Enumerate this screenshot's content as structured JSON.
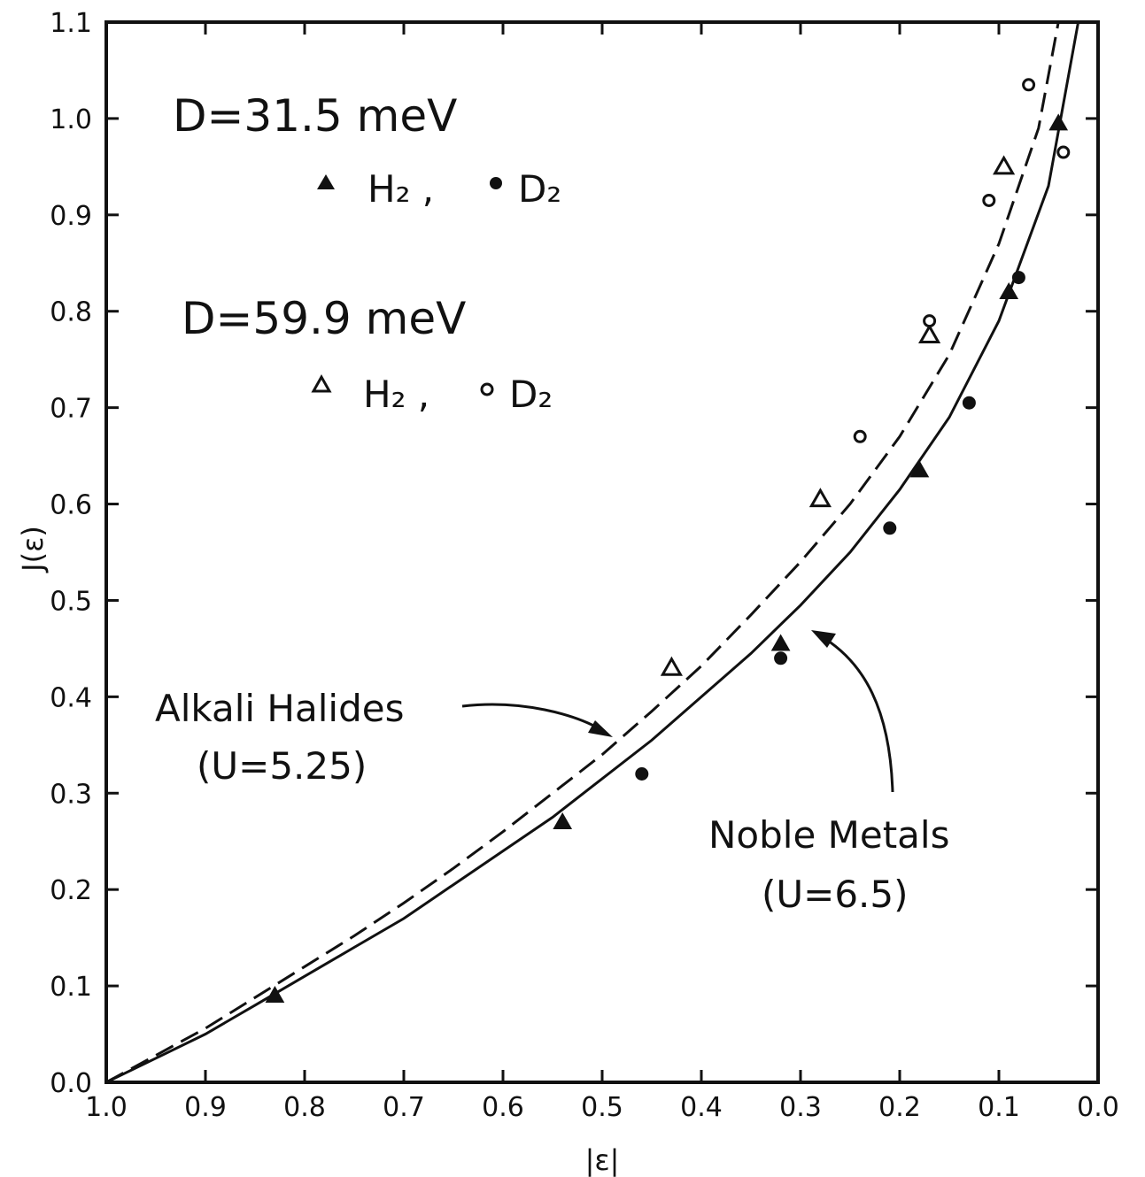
{
  "chart_data": {
    "type": "line",
    "xlabel": "|ε|",
    "ylabel": "J(ε)",
    "xlim": [
      1.0,
      0.0
    ],
    "ylim": [
      0.0,
      1.1
    ],
    "x_reversed": true,
    "grid": false,
    "x_ticks": [
      "1.0",
      "0.9",
      "0.8",
      "0.7",
      "0.6",
      "0.5",
      "0.4",
      "0.3",
      "0.2",
      "0.1",
      "0.0"
    ],
    "y_ticks": [
      "0.0",
      "0.1",
      "0.2",
      "0.3",
      "0.4",
      "0.5",
      "0.6",
      "0.7",
      "0.8",
      "0.9",
      "1.0",
      "1.1"
    ],
    "series": [
      {
        "style": "solid",
        "x": [
          1.0,
          0.95,
          0.9,
          0.85,
          0.8,
          0.75,
          0.7,
          0.65,
          0.6,
          0.55,
          0.5,
          0.45,
          0.4,
          0.35,
          0.3,
          0.25,
          0.2,
          0.15,
          0.1,
          0.05,
          0.02
        ],
        "values": [
          0.0,
          0.025,
          0.05,
          0.08,
          0.11,
          0.14,
          0.17,
          0.205,
          0.24,
          0.275,
          0.315,
          0.355,
          0.4,
          0.445,
          0.495,
          0.55,
          0.615,
          0.69,
          0.79,
          0.93,
          1.1
        ]
      },
      {
        "style": "dashed",
        "x": [
          1.0,
          0.95,
          0.9,
          0.85,
          0.8,
          0.75,
          0.7,
          0.65,
          0.6,
          0.55,
          0.5,
          0.45,
          0.4,
          0.35,
          0.3,
          0.25,
          0.2,
          0.15,
          0.1,
          0.06,
          0.04
        ],
        "values": [
          0.0,
          0.028,
          0.056,
          0.088,
          0.12,
          0.152,
          0.186,
          0.222,
          0.26,
          0.3,
          0.34,
          0.385,
          0.432,
          0.485,
          0.54,
          0.6,
          0.67,
          0.755,
          0.87,
          0.99,
          1.1
        ]
      }
    ],
    "points": [
      {
        "group": "H2, D=31.5 meV",
        "marker": "triangle-filled",
        "x": [
          0.83,
          0.54,
          0.32,
          0.18,
          0.09,
          0.04
        ],
        "y": [
          0.09,
          0.27,
          0.455,
          0.635,
          0.82,
          0.995
        ]
      },
      {
        "group": "D2, D=31.5 meV",
        "marker": "circle-filled",
        "x": [
          0.46,
          0.32,
          0.21,
          0.13,
          0.08
        ],
        "y": [
          0.32,
          0.44,
          0.575,
          0.705,
          0.835
        ]
      },
      {
        "group": "H2, D=59.9 meV",
        "marker": "triangle-open",
        "x": [
          0.43,
          0.28,
          0.17,
          0.095
        ],
        "y": [
          0.43,
          0.605,
          0.775,
          0.95
        ]
      },
      {
        "group": "D2, D=59.9 meV",
        "marker": "circle-open",
        "x": [
          0.24,
          0.17,
          0.11,
          0.07,
          0.035
        ],
        "y": [
          0.67,
          0.79,
          0.915,
          1.035,
          0.965
        ]
      }
    ],
    "legend": {
      "placement": "top-left",
      "group1_title": "D=31.5 meV",
      "group1_h2": "H₂ ,",
      "group1_d2": "D₂",
      "group2_title": "D=59.9 meV",
      "group2_h2": "H₂ ,",
      "group2_d2": "D₂"
    },
    "annotations": {
      "alkali_line1": "Alkali Halides",
      "alkali_line2": "(U=5.25)",
      "noble_line1": "Noble Metals",
      "noble_line2": "(U=6.5)"
    },
    "colors": {
      "ink": "#111111",
      "background": "#ffffff"
    }
  }
}
